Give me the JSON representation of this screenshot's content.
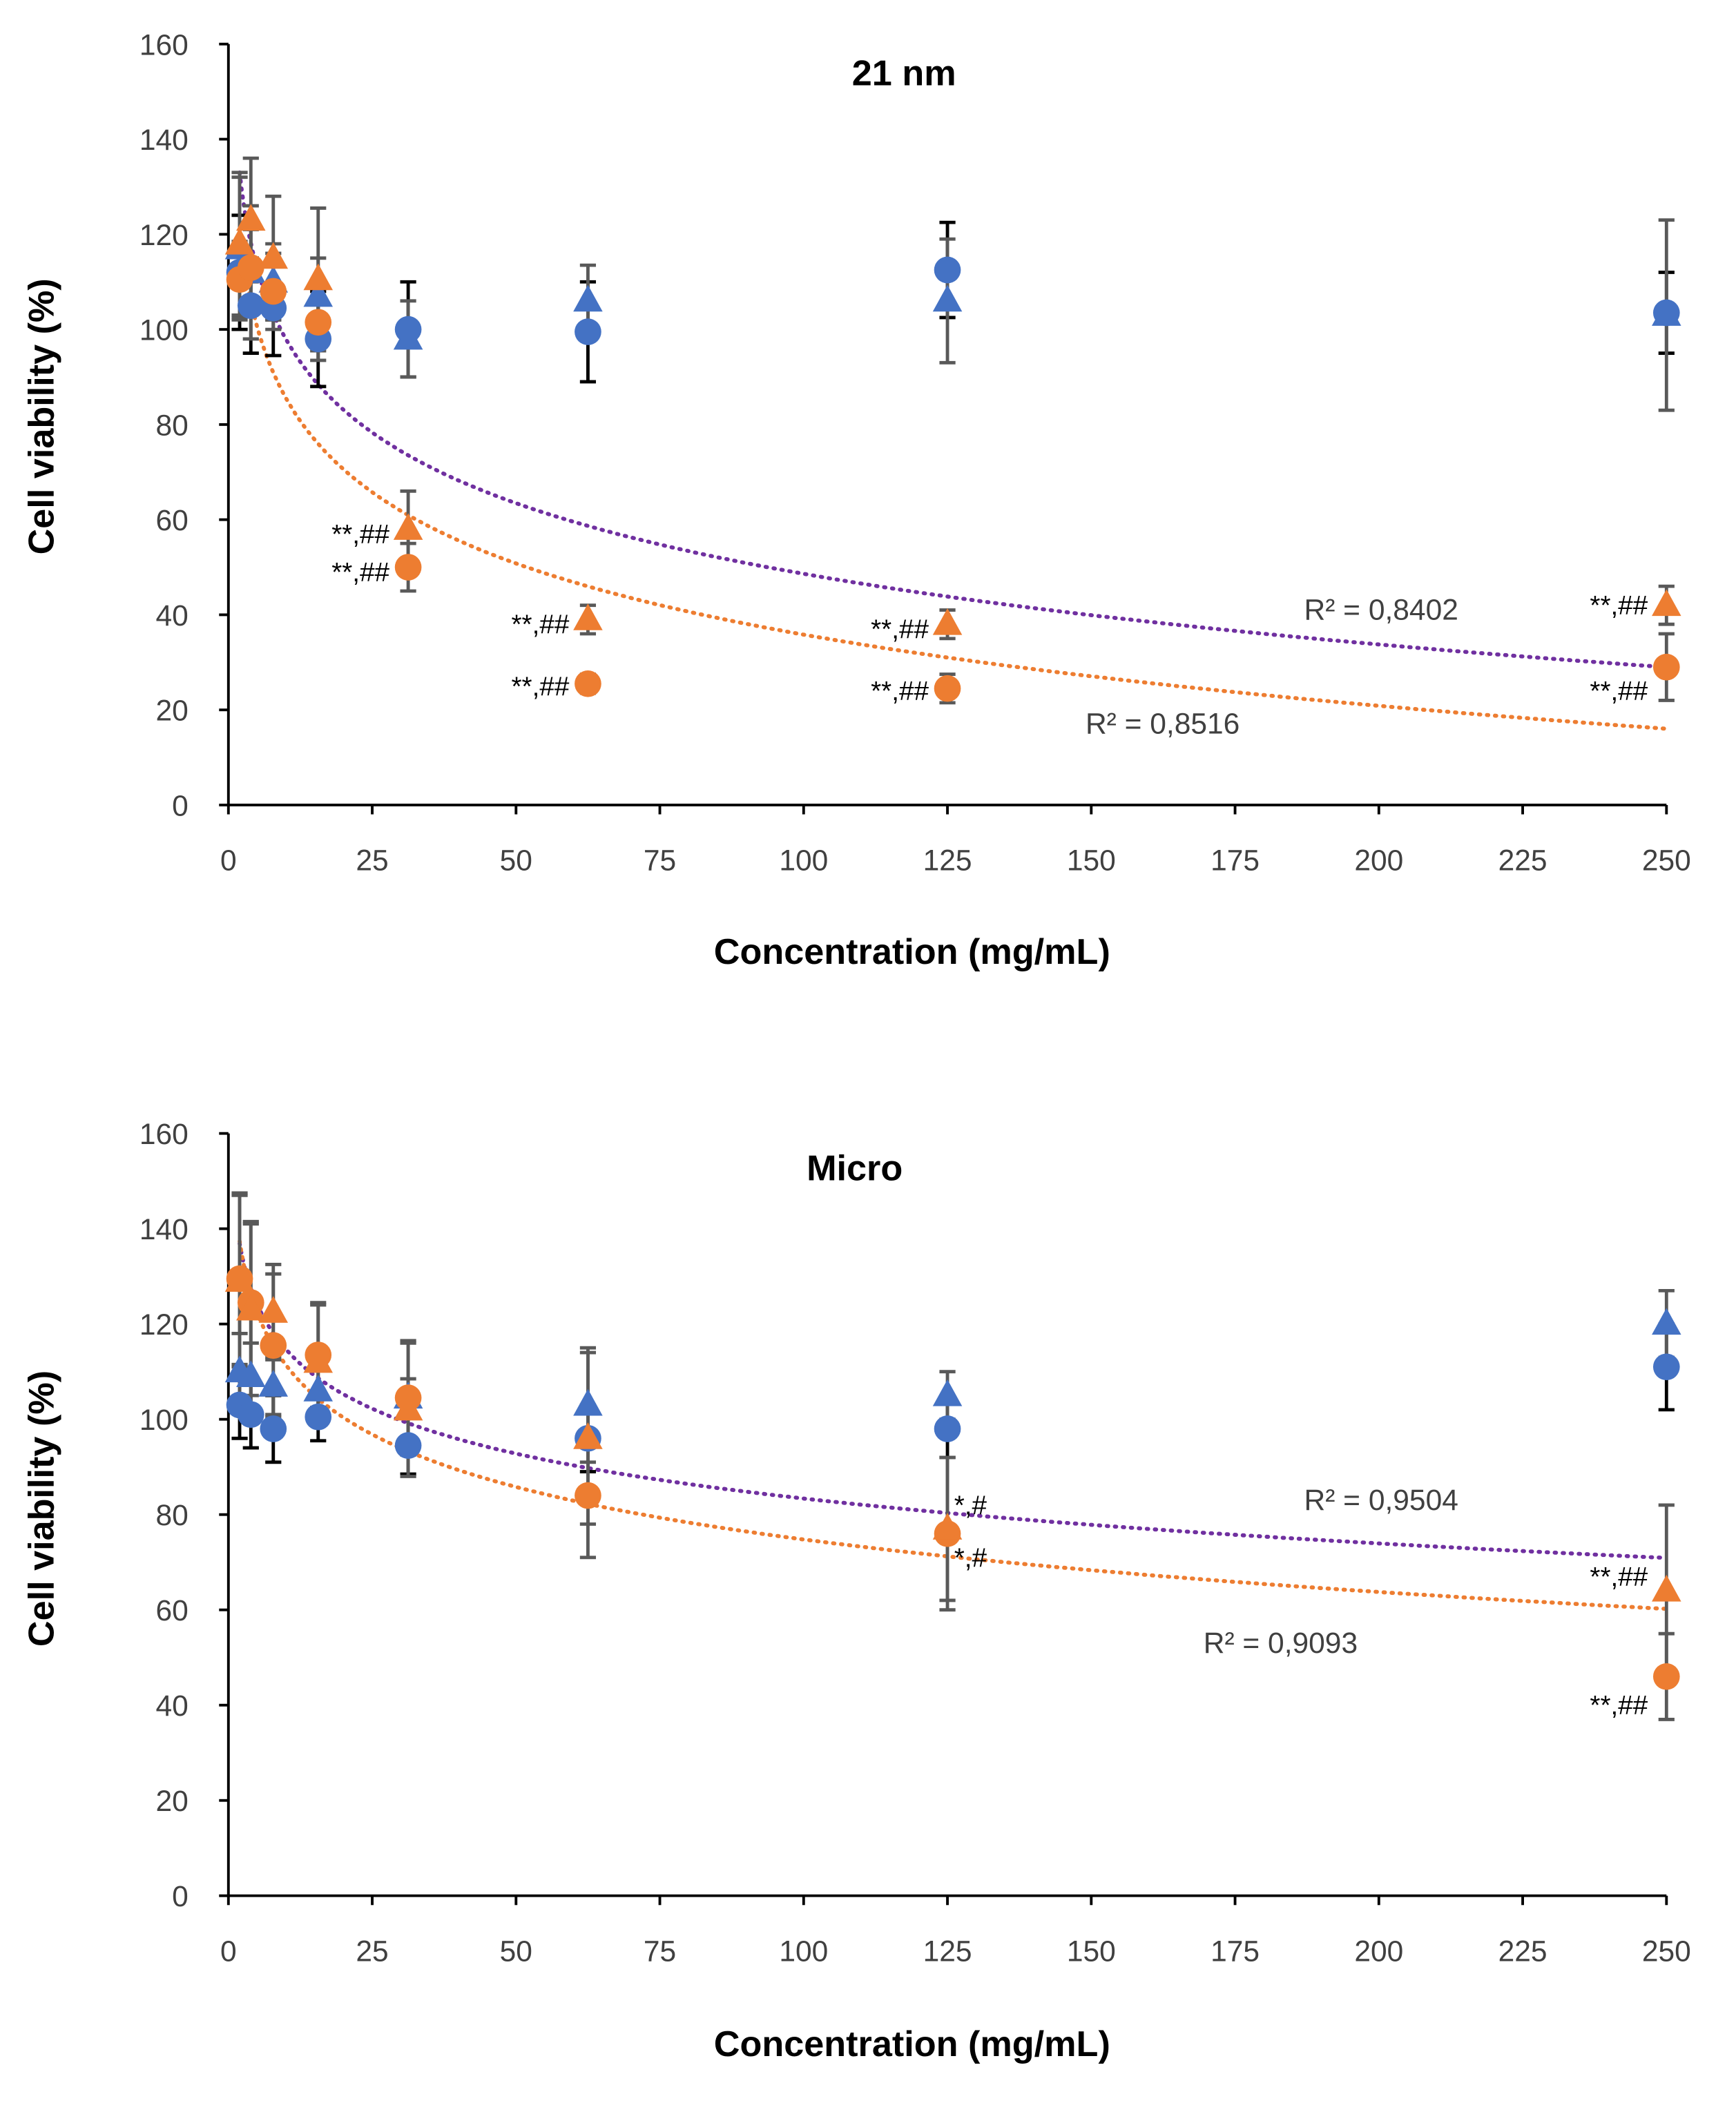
{
  "colors": {
    "blue": "#4472C4",
    "orange": "#ED7D31",
    "purple": "#7030A0",
    "axis": "#000000",
    "errorbar_gray": "#595959",
    "errorbar_black": "#000000"
  },
  "chart_data": [
    {
      "type": "scatter",
      "title": "21 nm",
      "xlabel": "Concentration (mg/mL)",
      "ylabel": "Cell viability (%)",
      "xlim": [
        0,
        250
      ],
      "ylim": [
        0,
        160
      ],
      "xticks": [
        0,
        25,
        50,
        75,
        100,
        125,
        150,
        175,
        200,
        225,
        250
      ],
      "yticks": [
        0,
        20,
        40,
        60,
        80,
        100,
        120,
        140,
        160
      ],
      "grid": false,
      "legend": "none",
      "x": [
        1.95,
        3.9,
        7.8,
        15.6,
        31.25,
        62.5,
        125,
        250
      ],
      "series": [
        {
          "marker": "circle",
          "color": "#4472C4",
          "errcolor": "#000000",
          "values": [
            112,
            105,
            104.5,
            98,
            100,
            99.5,
            112.5,
            103.5
          ],
          "err": [
            12,
            10,
            10,
            10,
            10,
            10.5,
            10,
            8.5
          ]
        },
        {
          "marker": "triangle",
          "color": "#4472C4",
          "errcolor": "#595959",
          "values": [
            117,
            112,
            110,
            107,
            98,
            106,
            106,
            103
          ],
          "err": [
            15,
            14,
            8,
            8,
            8,
            7.5,
            13,
            20
          ]
        },
        {
          "marker": "circle",
          "color": "#ED7D31",
          "errcolor": "#595959",
          "values": [
            110.5,
            113,
            108,
            101.5,
            50,
            25.5,
            24.5,
            29
          ],
          "err": [
            8,
            8,
            8,
            8,
            5,
            2,
            3,
            7
          ]
        },
        {
          "marker": "triangle",
          "color": "#ED7D31",
          "errcolor": "#595959",
          "values": [
            118,
            123,
            115,
            110.5,
            58,
            39,
            38,
            42
          ],
          "err": [
            15,
            13,
            13,
            15,
            8,
            3,
            3,
            4
          ]
        }
      ],
      "trendlines": [
        {
          "type": "logarithmic",
          "color": "#7030A0",
          "a": -21.43,
          "b": 147.3,
          "r2_label": "R² = 0,8402",
          "label_x": 187,
          "label_y": 39
        },
        {
          "type": "logarithmic",
          "color": "#ED7D31",
          "a": -21.6,
          "b": 135.3,
          "r2_label": "R² = 0,8516",
          "label_x": 149,
          "label_y": 15
        }
      ],
      "annotations": [
        {
          "text": "**,##",
          "x": 31.25,
          "y": 57,
          "align": "left"
        },
        {
          "text": "**,##",
          "x": 31.25,
          "y": 49,
          "align": "left"
        },
        {
          "text": "**,##",
          "x": 62.5,
          "y": 38,
          "align": "left"
        },
        {
          "text": "**,##",
          "x": 62.5,
          "y": 25,
          "align": "left"
        },
        {
          "text": "**,##",
          "x": 125,
          "y": 37,
          "align": "left"
        },
        {
          "text": "**,##",
          "x": 125,
          "y": 24,
          "align": "left"
        },
        {
          "text": "**,##",
          "x": 250,
          "y": 42,
          "align": "left"
        },
        {
          "text": "**,##",
          "x": 250,
          "y": 24,
          "align": "left"
        }
      ]
    },
    {
      "type": "scatter",
      "title": "Micro",
      "xlabel": "Concentration (mg/mL)",
      "ylabel": "Cell viability (%)",
      "xlim": [
        0,
        250
      ],
      "ylim": [
        0,
        160
      ],
      "xticks": [
        0,
        25,
        50,
        75,
        100,
        125,
        150,
        175,
        200,
        225,
        250
      ],
      "yticks": [
        0,
        20,
        40,
        60,
        80,
        100,
        120,
        140,
        160
      ],
      "grid": false,
      "legend": "none",
      "x": [
        1.95,
        3.9,
        7.8,
        15.6,
        31.25,
        62.5,
        125,
        250
      ],
      "series": [
        {
          "marker": "circle",
          "color": "#4472C4",
          "errcolor": "#000000",
          "values": [
            103,
            101,
            98,
            100.5,
            94.5,
            96,
            98,
            111
          ],
          "err": [
            7,
            7,
            7,
            5,
            6,
            7,
            6,
            9
          ]
        },
        {
          "marker": "triangle",
          "color": "#4472C4",
          "errcolor": "#595959",
          "values": [
            110,
            109,
            107,
            106,
            104.5,
            103,
            105,
            120
          ],
          "err": [
            8,
            7,
            6,
            5,
            4,
            12,
            5,
            7
          ]
        },
        {
          "marker": "circle",
          "color": "#ED7D31",
          "errcolor": "#595959",
          "values": [
            129.5,
            124.5,
            115.5,
            113.5,
            104.5,
            84,
            76,
            46
          ],
          "err": [
            18,
            17,
            15,
            11,
            12,
            13,
            16,
            9
          ]
        },
        {
          "marker": "triangle",
          "color": "#ED7D31",
          "errcolor": "#595959",
          "values": [
            129,
            123,
            122.5,
            112,
            102,
            96,
            77,
            64
          ],
          "err": [
            18,
            18,
            10,
            12,
            14,
            18,
            15,
            18
          ]
        }
      ],
      "trendlines": [
        {
          "type": "logarithmic",
          "color": "#7030A0",
          "a": -13.6,
          "b": 146,
          "r2_label": "R² = 0,9504",
          "label_x": 187,
          "label_y": 81
        },
        {
          "type": "logarithmic",
          "color": "#ED7D31",
          "a": -15.9,
          "b": 148,
          "r2_label": "R² = 0,9093",
          "label_x": 169.5,
          "label_y": 51
        }
      ],
      "annotations": [
        {
          "text": "*,#",
          "x": 125,
          "y": 82,
          "align": "right"
        },
        {
          "text": "*,#",
          "x": 125,
          "y": 71,
          "align": "right"
        },
        {
          "text": "**,##",
          "x": 250,
          "y": 67,
          "align": "left"
        },
        {
          "text": "**,##",
          "x": 250,
          "y": 40,
          "align": "left"
        }
      ]
    }
  ]
}
